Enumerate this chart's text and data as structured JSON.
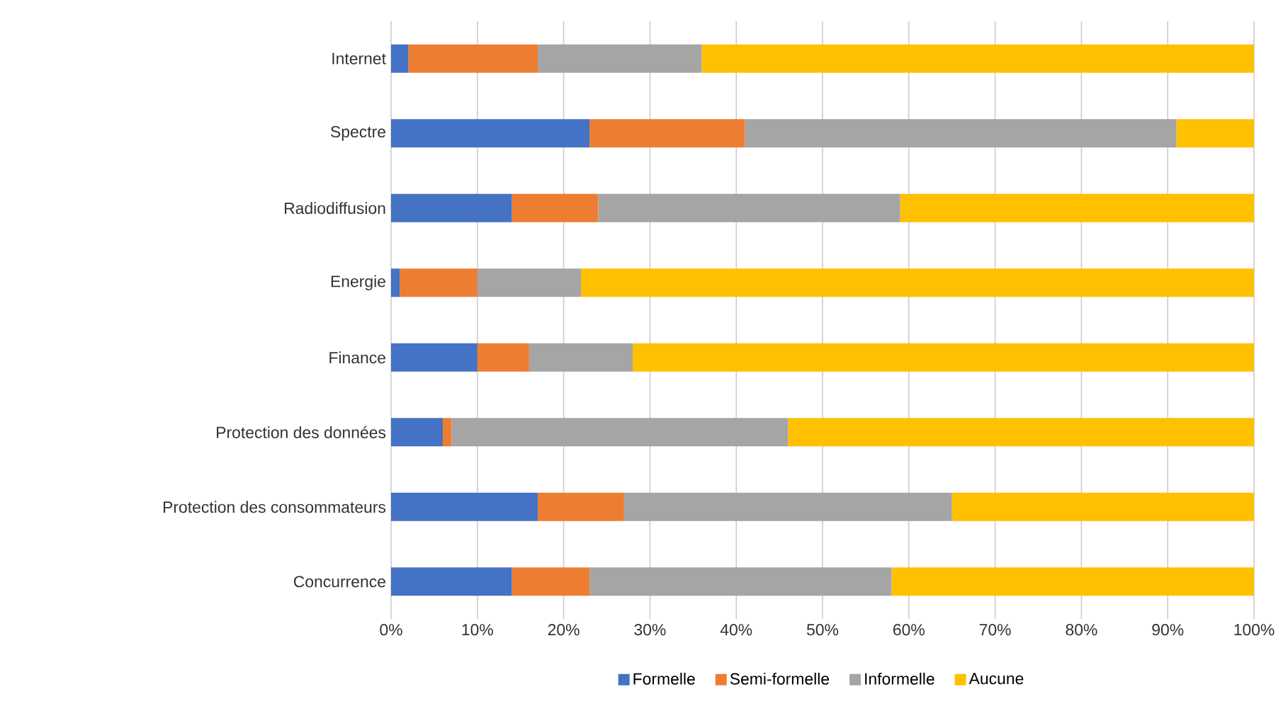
{
  "chart_data": {
    "type": "bar",
    "orientation": "horizontal",
    "stacked": true,
    "categories": [
      "Internet",
      "Spectre",
      "Radiodiffusion",
      "Energie",
      "Finance",
      "Protection des données",
      "Protection des consommateurs",
      "Concurrence"
    ],
    "series": [
      {
        "name": "Formelle",
        "color": "#4472c4",
        "values": [
          2,
          23,
          14,
          1,
          10,
          6,
          17,
          14
        ]
      },
      {
        "name": "Semi-formelle",
        "color": "#ed7d31",
        "values": [
          15,
          18,
          10,
          9,
          6,
          1,
          10,
          9
        ]
      },
      {
        "name": "Informelle",
        "color": "#a5a5a5",
        "values": [
          19,
          50,
          35,
          12,
          12,
          39,
          38,
          35
        ]
      },
      {
        "name": "Aucune",
        "color": "#ffc000",
        "values": [
          64,
          9,
          41,
          78,
          72,
          54,
          35,
          42
        ]
      }
    ],
    "xlim": [
      0,
      100
    ],
    "xticks": [
      {
        "value": 0,
        "label": "0%"
      },
      {
        "value": 10,
        "label": "10%"
      },
      {
        "value": 20,
        "label": "20%"
      },
      {
        "value": 30,
        "label": "30%"
      },
      {
        "value": 40,
        "label": "40%"
      },
      {
        "value": 50,
        "label": "50%"
      },
      {
        "value": 60,
        "label": "60%"
      },
      {
        "value": 70,
        "label": "70%"
      },
      {
        "value": 80,
        "label": "80%"
      },
      {
        "value": 90,
        "label": "90%"
      },
      {
        "value": 100,
        "label": "100%"
      }
    ],
    "grid": "x",
    "legend": "bottom"
  }
}
